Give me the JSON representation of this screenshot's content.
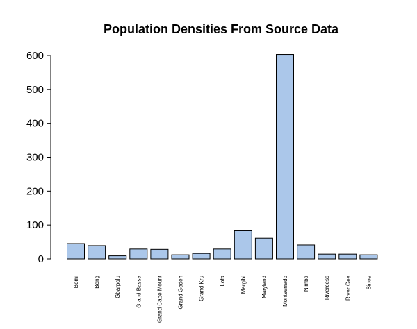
{
  "chart_data": {
    "type": "bar",
    "title": "Population Densities From Source Data",
    "xlabel": "",
    "ylabel": "",
    "categories": [
      "Bomi",
      "Bong",
      "Gbarpolu",
      "Grand Bassa",
      "Grand Cape Mount",
      "Grand Gedeh",
      "Grand Kru",
      "Lofa",
      "Margibi",
      "Maryland",
      "Montserrado",
      "Nimba",
      "Rivercess",
      "River Gee",
      "Sinoe"
    ],
    "values": [
      45,
      39,
      9,
      29,
      28,
      12,
      16,
      29,
      83,
      61,
      603,
      41,
      14,
      14,
      12
    ],
    "ylim": [
      0,
      600
    ],
    "yticks": [
      "0",
      "100",
      "200",
      "300",
      "400",
      "500",
      "600"
    ],
    "grid": false,
    "bar_color": "#abc7ea"
  }
}
